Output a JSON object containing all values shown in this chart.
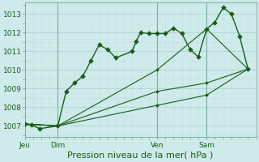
{
  "title": "Pression niveau de la mer( hPa )",
  "ylim": [
    1006.4,
    1013.6
  ],
  "yticks": [
    1007,
    1008,
    1009,
    1010,
    1011,
    1012,
    1013
  ],
  "background_color": "#ceeaea",
  "grid_major_color": "#aed4d4",
  "grid_minor_color": "#c4e2e2",
  "line_color": "#1a5c1a",
  "spine_color": "#7ab0a0",
  "xtick_labels": [
    "Jeu",
    "Dim",
    "Ven",
    "Sam"
  ],
  "xtick_positions": [
    0,
    2,
    8,
    11
  ],
  "xlim": [
    0,
    14
  ],
  "series": [
    [
      0.0,
      1007.1,
      0.4,
      1007.05,
      0.9,
      1006.85,
      2.0,
      1007.0,
      2.5,
      1008.85,
      3.0,
      1009.3,
      3.5,
      1009.65,
      4.0,
      1010.5,
      4.5,
      1011.35,
      5.0,
      1011.1,
      5.5,
      1010.65,
      6.5,
      1011.0,
      6.75,
      1011.55,
      7.0,
      1012.0,
      7.5,
      1011.95,
      8.0,
      1011.95,
      8.5,
      1011.95,
      9.0,
      1012.25,
      9.5,
      1011.95,
      10.0,
      1011.1,
      10.5,
      1010.7,
      11.0,
      1012.2,
      11.5,
      1012.55,
      12.0,
      1013.35,
      12.5,
      1013.0,
      13.0,
      1011.8,
      13.5,
      1010.05
    ],
    [
      0.0,
      1007.1,
      2.0,
      1007.0,
      8.0,
      1010.0,
      11.0,
      1012.2,
      13.5,
      1010.05
    ],
    [
      0.0,
      1007.1,
      2.0,
      1007.0,
      8.0,
      1008.85,
      11.0,
      1009.3,
      13.5,
      1010.05
    ],
    [
      0.0,
      1007.1,
      2.0,
      1007.0,
      8.0,
      1008.1,
      11.0,
      1008.65,
      13.5,
      1010.05
    ]
  ],
  "series_markers": [
    true,
    true,
    true,
    true
  ],
  "series_linewidths": [
    1.0,
    0.8,
    0.8,
    0.8
  ],
  "series_marker_sizes": [
    3,
    2,
    2,
    2
  ],
  "marker": "D",
  "vline_positions": [
    0,
    2,
    8,
    11
  ],
  "vline_color": "#7ab0a0",
  "title_color": "#1a5c1a",
  "title_fontsize": 8,
  "tick_fontsize": 6.5
}
